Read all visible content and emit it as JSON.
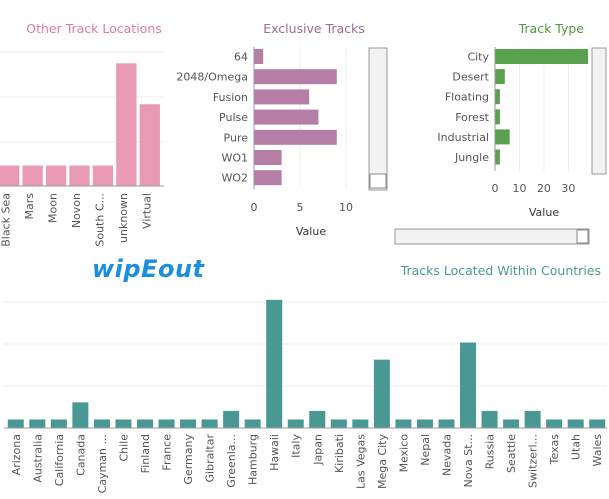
{
  "logo_text": "wipEout",
  "colors": {
    "pink": "#e899b4",
    "purple": "#b47ea6",
    "green": "#59a14f",
    "teal": "#499894",
    "pink_title": "#e07ba0",
    "purple_title": "#a06a94",
    "green_title": "#4e9a3c",
    "teal_title": "#4a9b93"
  },
  "chart_data": [
    {
      "type": "bar",
      "title": "Other Track Locations",
      "categories": [
        "Black Sea",
        "Mars",
        "Moon",
        "Novon",
        "South C...",
        "unknown",
        "Virtual"
      ],
      "values": [
        1,
        1,
        1,
        1,
        1,
        6,
        4
      ],
      "ylim": [
        0,
        6.8
      ]
    },
    {
      "type": "bar",
      "orientation": "horizontal",
      "title": "Exclusive Tracks",
      "categories": [
        "64",
        "2048/Omega",
        "Fusion",
        "Pulse",
        "Pure",
        "WO1",
        "WO2"
      ],
      "values": [
        1,
        9,
        6,
        7,
        9,
        3,
        3
      ],
      "xlabel": "Value",
      "xticks": [
        0,
        5,
        10
      ],
      "xlim": [
        0,
        10.5
      ]
    },
    {
      "type": "bar",
      "orientation": "horizontal",
      "title": "Track Type",
      "categories": [
        "City",
        "Desert",
        "Floating",
        "Forest",
        "Industrial",
        "Jungle"
      ],
      "values": [
        38,
        4,
        2,
        2,
        6,
        2
      ],
      "xlabel": "Value",
      "xticks": [
        0,
        10,
        20,
        30
      ],
      "xlim": [
        0,
        40
      ]
    },
    {
      "type": "bar",
      "title": "Tracks Located Within Countries",
      "categories": [
        "Arizona",
        "Australia",
        "California",
        "Canada",
        "Cayman ...",
        "Chile",
        "Finland",
        "France",
        "Germany",
        "Gibraltar",
        "Greenla...",
        "Hamburg",
        "Hawaii",
        "Italy",
        "Japan",
        "Kiribati",
        "Las Vegas",
        "Mega City",
        "Mexico",
        "Nepal",
        "Nevada",
        "Nova St...",
        "Russia",
        "Seattle",
        "Switzerl...",
        "Texas",
        "Utah",
        "Wales"
      ],
      "values": [
        1,
        1,
        1,
        3,
        1,
        1,
        1,
        1,
        1,
        1,
        2,
        1,
        15,
        1,
        2,
        1,
        1,
        8,
        1,
        1,
        1,
        10,
        2,
        1,
        2,
        1,
        1,
        1
      ],
      "ylim": [
        0,
        16.5
      ]
    }
  ]
}
